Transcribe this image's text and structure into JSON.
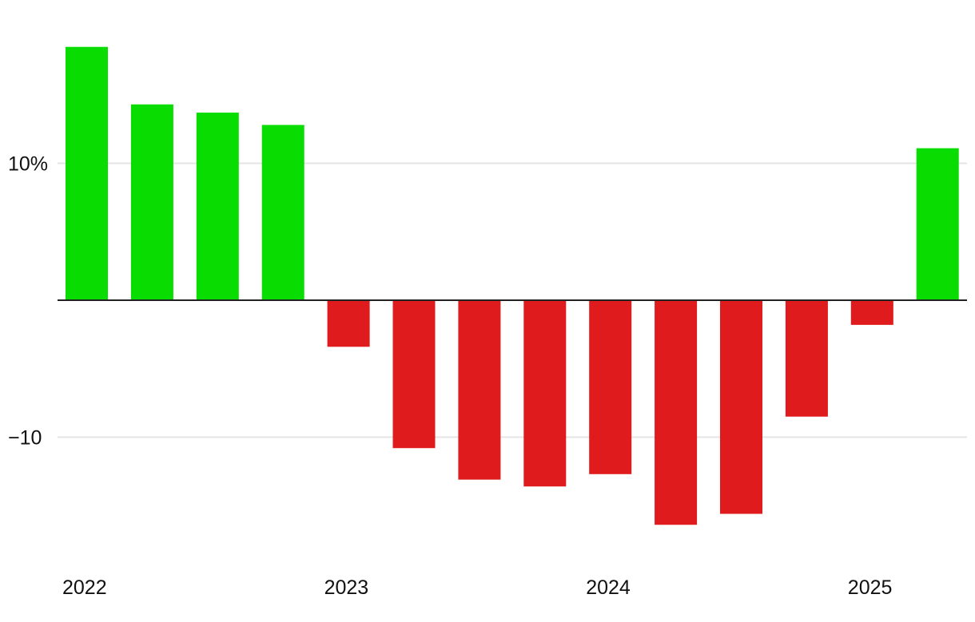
{
  "chart_data": {
    "type": "bar",
    "title": "",
    "xlabel": "",
    "ylabel": "",
    "categories": [
      "2022 Q1",
      "2022 Q2",
      "2022 Q3",
      "2022 Q4",
      "2023 Q1",
      "2023 Q2",
      "2023 Q3",
      "2023 Q4",
      "2024 Q1",
      "2024 Q2",
      "2024 Q3",
      "2024 Q4",
      "2025 Q1",
      "2025 Q2"
    ],
    "values": [
      18.5,
      14.3,
      13.7,
      12.8,
      -3.4,
      -10.8,
      -13.1,
      -13.6,
      -12.7,
      -16.4,
      -15.6,
      -8.5,
      -1.8,
      11.1
    ],
    "ylim": [
      -19,
      21
    ],
    "y_ticks": [
      {
        "value": 10,
        "label": "10%"
      },
      {
        "value": -10,
        "label": "−10"
      }
    ],
    "x_ticks": [
      {
        "index": 0,
        "label": "2022"
      },
      {
        "index": 4,
        "label": "2023"
      },
      {
        "index": 8,
        "label": "2024"
      },
      {
        "index": 12,
        "label": "2025"
      }
    ],
    "grid": true,
    "legend": "none",
    "colors": {
      "positive": "#08dc00",
      "negative": "#e01b1d",
      "grid": "#e4e4e4",
      "zero_line": "#222222"
    }
  }
}
